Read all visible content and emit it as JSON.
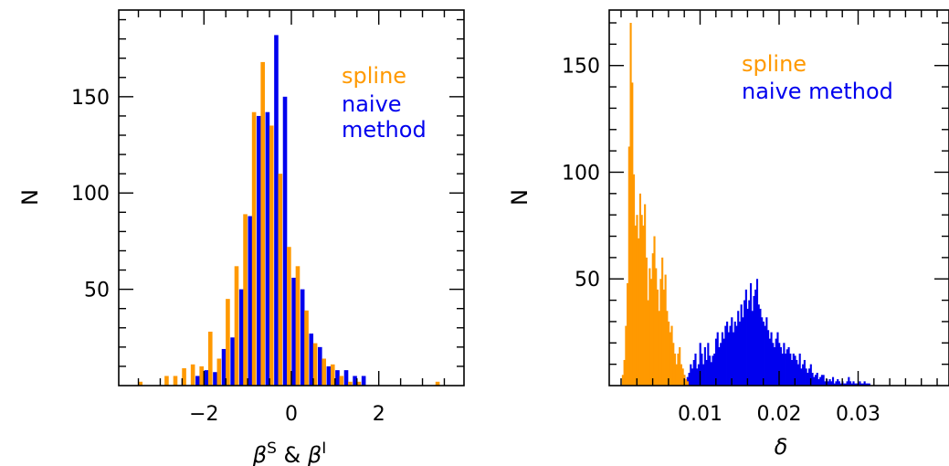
{
  "colors": {
    "spline": "#ff9900",
    "naive": "#0000ee",
    "frame": "#000000"
  },
  "chart_data": [
    {
      "type": "bar",
      "ylabel": "N",
      "xlabel_parts": [
        "β",
        "S",
        " & ",
        "β",
        "I"
      ],
      "xlim": [
        -3.95,
        3.95
      ],
      "ylim": [
        0,
        195
      ],
      "xticks": [
        -2,
        0,
        2
      ],
      "xtick_labels": [
        "−2",
        "0",
        "2"
      ],
      "yticks": [
        50,
        100,
        150
      ],
      "ytick_labels": [
        "50",
        "100",
        "150"
      ],
      "legend_lines": [
        {
          "text": "spline",
          "series": "spline"
        },
        {
          "text": "naive",
          "series": "naive"
        },
        {
          "text": "method",
          "series": "naive"
        }
      ],
      "legend_position": "top-right",
      "bin_centers": [
        -3.4,
        -3.2,
        -3.0,
        -2.8,
        -2.6,
        -2.4,
        -2.2,
        -2.0,
        -1.8,
        -1.6,
        -1.4,
        -1.2,
        -1.0,
        -0.8,
        -0.6,
        -0.4,
        -0.2,
        0.0,
        0.2,
        0.4,
        0.6,
        0.8,
        1.0,
        1.2,
        1.4,
        1.6,
        1.8,
        2.0,
        2.2,
        2.4,
        2.6,
        2.8,
        3.0,
        3.2,
        3.4
      ],
      "series": [
        {
          "name": "spline",
          "values": [
            2,
            0,
            0,
            5,
            5,
            9,
            11,
            10,
            28,
            14,
            45,
            62,
            89,
            142,
            168,
            135,
            110,
            72,
            62,
            39,
            22,
            14,
            11,
            5,
            2,
            2,
            0,
            0,
            0,
            0,
            0,
            0,
            0,
            0,
            2
          ]
        },
        {
          "name": "naive",
          "values": [
            0,
            0,
            0,
            0,
            0,
            0,
            5,
            8,
            7,
            19,
            25,
            50,
            88,
            140,
            142,
            182,
            150,
            56,
            50,
            27,
            20,
            10,
            8,
            8,
            5,
            5,
            0,
            0,
            0,
            0,
            0,
            0,
            0,
            0,
            0
          ]
        }
      ]
    },
    {
      "type": "bar",
      "ylabel": "N",
      "xlabel": "δ",
      "xlim": [
        -0.0015,
        0.0415
      ],
      "ylim": [
        0,
        176
      ],
      "xticks": [
        0.01,
        0.02,
        0.03
      ],
      "xtick_labels": [
        "0.01",
        "0.02",
        "0.03"
      ],
      "yticks": [
        50,
        100,
        150
      ],
      "ytick_labels": [
        "50",
        "100",
        "150"
      ],
      "legend_lines": [
        {
          "text": "spline",
          "series": "spline"
        },
        {
          "text": "naive method",
          "series": "naive"
        }
      ],
      "legend_position": "top-right",
      "bin_width": 0.0002,
      "series": [
        {
          "name": "spline",
          "x_start": 0.0001,
          "values": [
            5,
            12,
            28,
            48,
            112,
            170,
            142,
            99,
            75,
            80,
            69,
            90,
            80,
            75,
            85,
            60,
            40,
            55,
            50,
            62,
            70,
            55,
            45,
            35,
            50,
            60,
            45,
            52,
            35,
            30,
            25,
            28,
            20,
            15,
            10,
            15,
            18,
            10,
            8,
            5,
            3,
            2
          ]
        },
        {
          "name": "naive",
          "x_start": 0.0065,
          "values": [
            1,
            2,
            1,
            3,
            4,
            2,
            3,
            5,
            2,
            4,
            6,
            10,
            8,
            12,
            15,
            8,
            10,
            20,
            15,
            10,
            18,
            12,
            20,
            14,
            11,
            14,
            15,
            22,
            25,
            18,
            20,
            25,
            22,
            28,
            30,
            25,
            28,
            32,
            25,
            30,
            28,
            35,
            30,
            38,
            32,
            40,
            45,
            36,
            40,
            48,
            35,
            42,
            45,
            50,
            38,
            36,
            32,
            30,
            28,
            32,
            26,
            22,
            25,
            20,
            18,
            22,
            25,
            20,
            18,
            15,
            20,
            15,
            17,
            18,
            15,
            12,
            15,
            14,
            12,
            10,
            15,
            8,
            10,
            12,
            8,
            6,
            8,
            10,
            6,
            4,
            5,
            6,
            3,
            4,
            5,
            5,
            2,
            3,
            2,
            3,
            2,
            4,
            1,
            2,
            3,
            2,
            1,
            2,
            1,
            1,
            2,
            4,
            2,
            1,
            2,
            1,
            1,
            1,
            2,
            1,
            1,
            2,
            1,
            1,
            1
          ]
        }
      ]
    }
  ]
}
